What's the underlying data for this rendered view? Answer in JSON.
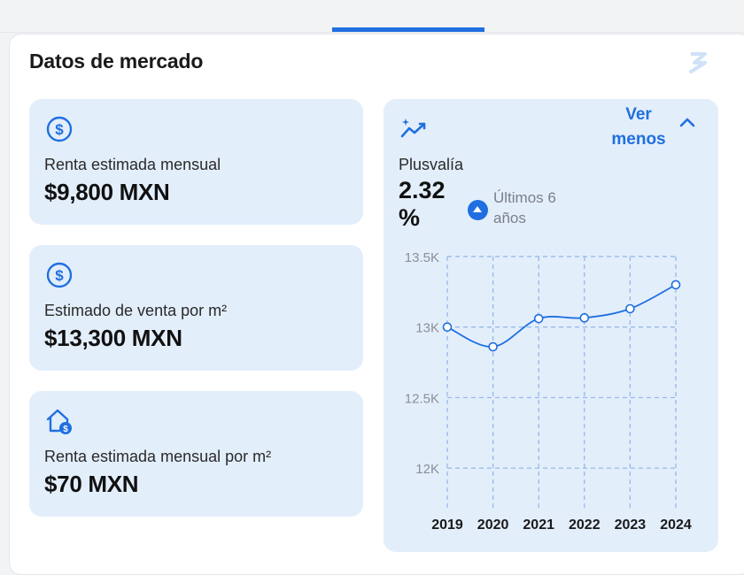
{
  "section": {
    "title": "Datos de mercado"
  },
  "cards": [
    {
      "icon": "dollar-circle-icon",
      "label": "Renta estimada mensual",
      "value": "$9,800 MXN"
    },
    {
      "icon": "dollar-circle-icon",
      "label": "Estimado de venta por m²",
      "value": "$13,300 MXN"
    },
    {
      "icon": "house-dollar-icon",
      "label": "Renta estimada mensual por m²",
      "value": "$70 MXN"
    }
  ],
  "plusvalia": {
    "icon": "trend-up-icon",
    "toggle_label": "Ver menos",
    "label": "Plusvalía",
    "value": "2.32 %",
    "period": "Últimos 6 años"
  },
  "colors": {
    "accent": "#1f6fe0",
    "card_bg": "#e3eefb"
  },
  "chart_data": {
    "type": "line",
    "x": [
      2019,
      2020,
      2021,
      2022,
      2023,
      2024
    ],
    "y_ticks": [
      "13.5K",
      "13K",
      "12.5K",
      "12K"
    ],
    "y_tick_values": [
      13500,
      13000,
      12500,
      12000
    ],
    "series": [
      {
        "values": [
          13000,
          12860,
          13060,
          13065,
          13130,
          13300
        ]
      }
    ],
    "ylim": [
      11700,
      13500
    ],
    "grid": true,
    "title": "",
    "xlabel": "",
    "ylabel": ""
  }
}
